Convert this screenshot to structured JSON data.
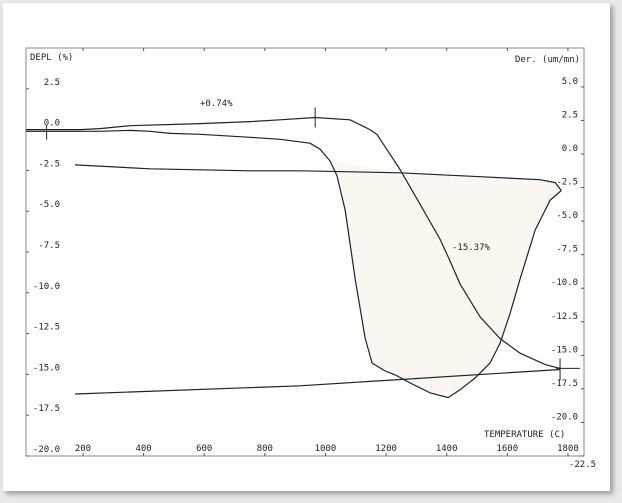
{
  "chart_data": {
    "type": "line",
    "xlabel": "TEMPERATURE  (C)",
    "ylabel_left": "DEPL  (%)",
    "ylabel_right": "Der.  (um/mn)",
    "xlim": [
      12,
      1853
    ],
    "ylim_left": [
      -20.0,
      5.0
    ],
    "ylim_right": [
      -22.5,
      7.9
    ],
    "x_ticks": [
      "200",
      "400",
      "600",
      "800",
      "1000",
      "1200",
      "1400",
      "1600",
      "1800"
    ],
    "y_ticks_left": [
      "2.5",
      "0.0",
      "-2.5",
      "-5.0",
      "-7.5",
      "-10.0",
      "-12.5",
      "-15.0",
      "-17.5",
      "-20.0"
    ],
    "y_ticks_right": [
      "5.0",
      "2.5",
      "0.0",
      "-2.5",
      "-5.0",
      "-7.5",
      "-10.0",
      "-12.5",
      "-15.0",
      "-17.5",
      "-20.0",
      "-22.5"
    ],
    "grid": false,
    "annotations": [
      {
        "text": "+0.74%",
        "at_temperature": 966
      },
      {
        "text": "-15.37%"
      }
    ],
    "shaded_fill": "#faf6f2",
    "line_color": "#222222",
    "series": [
      {
        "axis": "left",
        "segment": "heating",
        "x": [
          12,
          190,
          256,
          355,
          586,
          751,
          850,
          966,
          1081,
          1147,
          1170,
          1246,
          1312,
          1378,
          1411,
          1444,
          1510,
          1576,
          1642,
          1725,
          1774
        ],
        "y": [
          0.0,
          0.0,
          0.06,
          0.24,
          0.37,
          0.49,
          0.6,
          0.74,
          0.6,
          0.0,
          -0.3,
          -2.44,
          -4.57,
          -6.71,
          -8.05,
          -9.45,
          -11.47,
          -12.8,
          -13.7,
          -14.4,
          -14.63
        ]
      },
      {
        "axis": "left",
        "segment": "cooling",
        "x": [
          1774,
          916,
          174
        ],
        "y": [
          -14.7,
          -15.7,
          -16.2
        ]
      },
      {
        "axis": "right",
        "segment": "heating",
        "x": [
          12,
          190,
          256,
          355,
          421,
          487,
          586,
          751,
          850,
          949,
          982,
          1015,
          1038,
          1065,
          1098,
          1131,
          1154,
          1197,
          1230,
          1279,
          1345,
          1405,
          1444,
          1494,
          1543,
          1576,
          1609,
          1642,
          1692,
          1741,
          1778
        ],
        "y": [
          1.69,
          1.69,
          1.69,
          1.76,
          1.69,
          1.54,
          1.47,
          1.25,
          1.1,
          0.81,
          0.37,
          -0.51,
          -1.62,
          -4.19,
          -9.33,
          -13.74,
          -15.58,
          -16.17,
          -16.46,
          -17.05,
          -17.79,
          -18.15,
          -17.57,
          -16.68,
          -15.58,
          -14.11,
          -11.9,
          -9.33,
          -5.66,
          -3.45,
          -2.72
        ]
      },
      {
        "axis": "right",
        "segment": "cooling",
        "x": [
          1778,
          1758,
          1708,
          1510,
          1246,
          916,
          751,
          421,
          174
        ],
        "y": [
          -2.72,
          -2.13,
          -1.91,
          -1.69,
          -1.4,
          -1.25,
          -1.25,
          -1.1,
          -0.81
        ]
      }
    ]
  }
}
